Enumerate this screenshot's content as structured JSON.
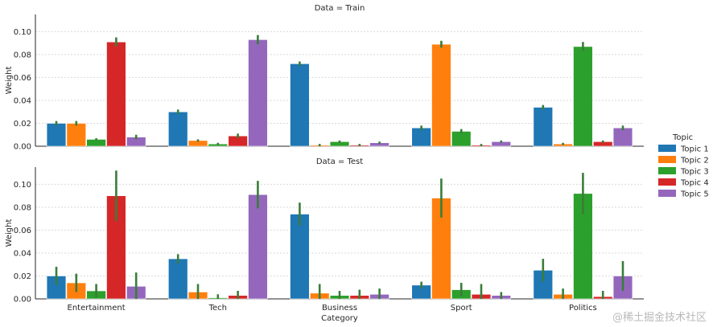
{
  "chart_data": {
    "type": "bar",
    "xlabel": "Category",
    "ylabel": "Weight",
    "ylim": [
      0,
      0.115
    ],
    "yticks": [
      0.0,
      0.02,
      0.04,
      0.06,
      0.08,
      0.1
    ],
    "ytick_labels": [
      "0.00",
      "0.02",
      "0.04",
      "0.06",
      "0.08",
      "0.10"
    ],
    "grid": "horizontal",
    "legend_position": "right",
    "categories": [
      "Entertainment",
      "Tech",
      "Business",
      "Sport",
      "Politics"
    ],
    "legend": {
      "title": "Topic",
      "items": [
        {
          "name": "Topic 1",
          "color": "#1f77b4"
        },
        {
          "name": "Topic 2",
          "color": "#ff7f0e"
        },
        {
          "name": "Topic 3",
          "color": "#2ca02c"
        },
        {
          "name": "Topic 4",
          "color": "#d62728"
        },
        {
          "name": "Topic 5",
          "color": "#9467bd"
        }
      ]
    },
    "errorbar_color": "#3a7d3a",
    "panels": [
      {
        "title": "Data = Train",
        "series": [
          {
            "name": "Topic 1",
            "values": [
              0.02,
              0.03,
              0.072,
              0.016,
              0.034
            ],
            "errors": [
              0.002,
              0.002,
              0.002,
              0.002,
              0.002
            ]
          },
          {
            "name": "Topic 2",
            "values": [
              0.02,
              0.005,
              0.001,
              0.089,
              0.002
            ],
            "errors": [
              0.002,
              0.001,
              0.001,
              0.003,
              0.001
            ]
          },
          {
            "name": "Topic 3",
            "values": [
              0.006,
              0.002,
              0.004,
              0.013,
              0.087
            ],
            "errors": [
              0.001,
              0.001,
              0.001,
              0.002,
              0.004
            ]
          },
          {
            "name": "Topic 4",
            "values": [
              0.091,
              0.009,
              0.001,
              0.001,
              0.004
            ],
            "errors": [
              0.004,
              0.002,
              0.001,
              0.001,
              0.001
            ]
          },
          {
            "name": "Topic 5",
            "values": [
              0.008,
              0.093,
              0.003,
              0.004,
              0.016
            ],
            "errors": [
              0.002,
              0.004,
              0.001,
              0.001,
              0.002
            ]
          }
        ]
      },
      {
        "title": "Data = Test",
        "series": [
          {
            "name": "Topic 1",
            "values": [
              0.02,
              0.035,
              0.074,
              0.012,
              0.025
            ],
            "errors": [
              0.008,
              0.004,
              0.01,
              0.003,
              0.01
            ]
          },
          {
            "name": "Topic 2",
            "values": [
              0.014,
              0.006,
              0.005,
              0.088,
              0.004
            ],
            "errors": [
              0.008,
              0.007,
              0.008,
              0.017,
              0.005
            ]
          },
          {
            "name": "Topic 3",
            "values": [
              0.007,
              0.001,
              0.003,
              0.008,
              0.092
            ],
            "errors": [
              0.006,
              0.003,
              0.004,
              0.006,
              0.018
            ]
          },
          {
            "name": "Topic 4",
            "values": [
              0.09,
              0.003,
              0.003,
              0.004,
              0.002
            ],
            "errors": [
              0.022,
              0.004,
              0.005,
              0.009,
              0.005
            ]
          },
          {
            "name": "Topic 5",
            "values": [
              0.011,
              0.091,
              0.004,
              0.003,
              0.02
            ],
            "errors": [
              0.012,
              0.012,
              0.005,
              0.003,
              0.013
            ]
          }
        ]
      }
    ]
  },
  "watermark": "@稀土掘金技术社区"
}
